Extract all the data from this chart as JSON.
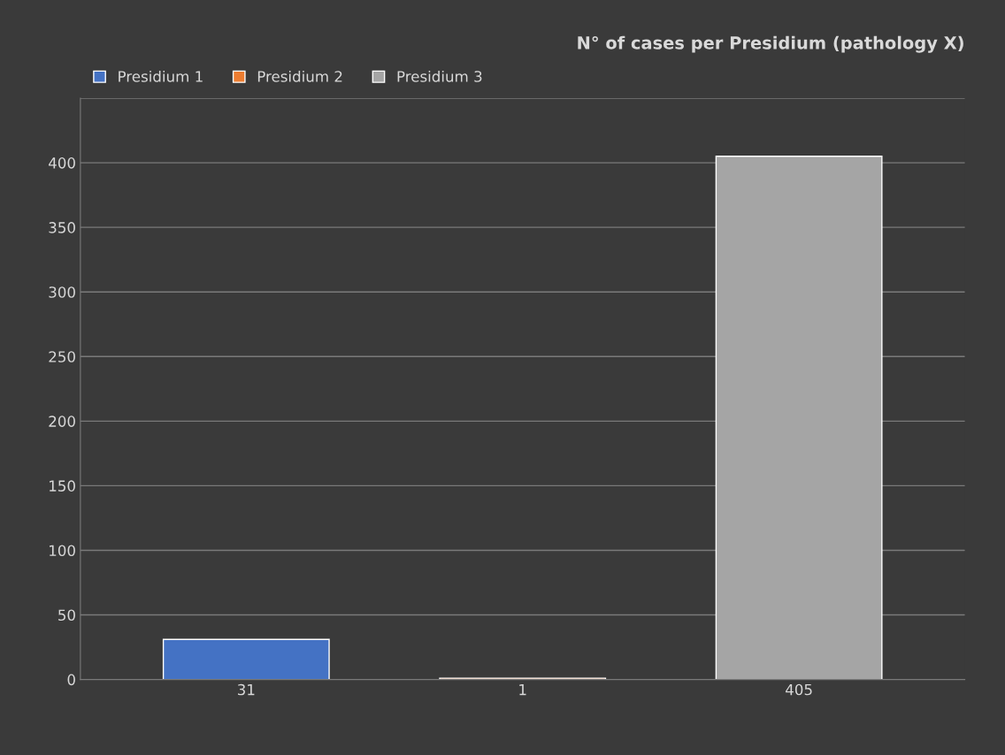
{
  "chart_data": {
    "type": "bar",
    "title": "N° of cases per Presidium (pathology X)",
    "categories": [
      "31",
      "1",
      "405"
    ],
    "series": [
      {
        "name": "Presidium 1",
        "color": "#4472c4",
        "values": [
          31,
          null,
          null
        ]
      },
      {
        "name": "Presidium 2",
        "color": "#ed7d31",
        "values": [
          null,
          1,
          null
        ]
      },
      {
        "name": "Presidium 3",
        "color": "#a5a5a5",
        "values": [
          null,
          null,
          405
        ]
      }
    ],
    "ylim": [
      0,
      450
    ],
    "yticks": [
      0,
      50,
      100,
      150,
      200,
      250,
      300,
      350,
      400,
      {
        "value": 450,
        "label": null
      }
    ],
    "grid": "y",
    "legend": "top left"
  }
}
